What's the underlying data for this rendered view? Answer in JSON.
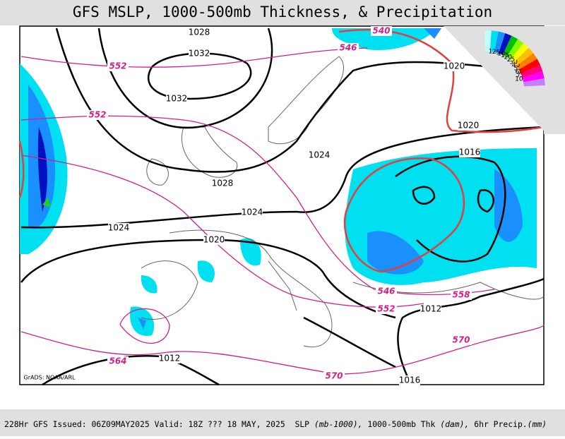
{
  "header": {
    "title": "GFS MSLP, 1000-500mb Thickness, & Precipitation"
  },
  "slp_labels": [
    "1028",
    "1032",
    "1032",
    "1024",
    "1028",
    "1024",
    "1024",
    "1020",
    "1020",
    "1020",
    "1016",
    "1012",
    "1012",
    "1016"
  ],
  "thickness_labels": [
    "540",
    "546",
    "552",
    "552",
    "546",
    "552",
    "558",
    "564",
    "570",
    "570"
  ],
  "legend": {
    "labels": [
      "100",
      "75",
      "60",
      "50",
      "40",
      "30",
      "25",
      "20",
      "15",
      "10",
      "5",
      "2",
      "1"
    ],
    "colors": [
      "#c080ff",
      "#ff00ff",
      "#ff0080",
      "#ff0000",
      "#ff8000",
      "#ffc000",
      "#ffff00",
      "#80ff00",
      "#00c000",
      "#0010c0",
      "#1a90ff",
      "#00e0f0",
      "#c0ffff"
    ]
  },
  "credit": "GrADS: NOAA/ARL",
  "footer": {
    "run": "228Hr GFS Issued: 06Z09MAY2025 Valid: 18Z ??? 18 MAY, 2025",
    "slp": "SLP",
    "slp_unit": "(mb-1000),",
    "thk": "1000-500mb Thk",
    "thk_unit": "(dam),",
    "precip": "6hr Precip.",
    "precip_unit": "(mm)"
  }
}
